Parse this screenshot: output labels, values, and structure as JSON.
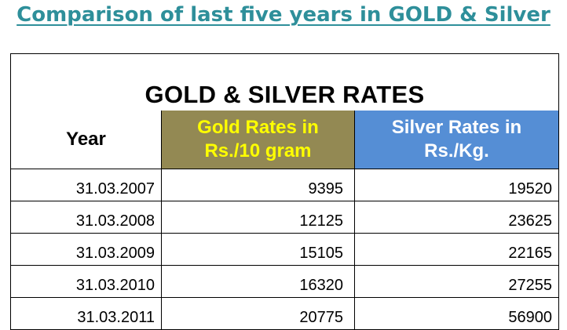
{
  "heading": "Comparison of last five years in GOLD & Silver",
  "table": {
    "title": "GOLD & SILVER RATES",
    "headers": {
      "year": "Year",
      "gold_line1": "Gold Rates in",
      "gold_line2": "Rs./10 gram",
      "silver_line1": "Silver Rates in",
      "silver_line2": "Rs./Kg."
    },
    "rows": [
      {
        "year": "31.03.2007",
        "gold": "9395",
        "silver": "19520"
      },
      {
        "year": "31.03.2008",
        "gold": "12125",
        "silver": "23625"
      },
      {
        "year": "31.03.2009",
        "gold": "15105",
        "silver": "22165"
      },
      {
        "year": "31.03.2010",
        "gold": "16320",
        "silver": "27255"
      },
      {
        "year": "31.03.2011",
        "gold": "20775",
        "silver": "56900"
      }
    ]
  },
  "colors": {
    "heading": "#2e8f9a",
    "gold_header_bg": "#938953",
    "gold_header_text": "#ffff00",
    "silver_header_bg": "#558ed5",
    "silver_header_text": "#ffffff"
  }
}
